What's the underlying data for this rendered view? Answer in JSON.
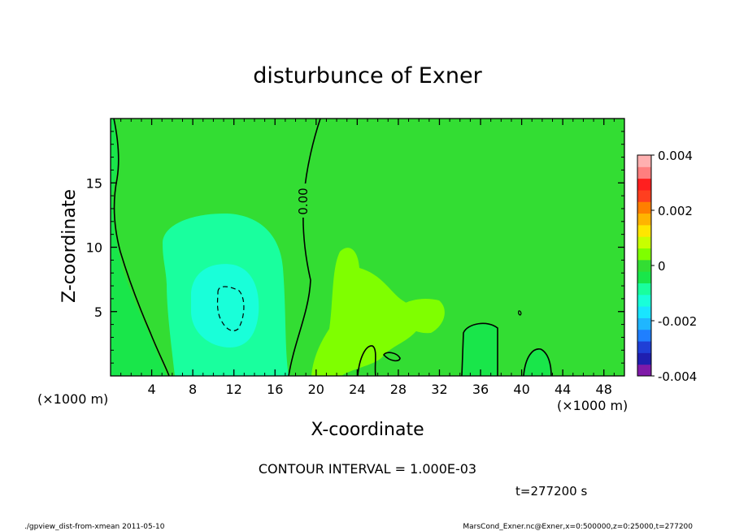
{
  "chart_data": {
    "type": "contour",
    "title": "disturbunce of Exner",
    "xlabel": "X-coordinate",
    "ylabel": "Z-coordinate",
    "x_unit_left": "(×1000 m)",
    "x_unit_right": "(×1000 m)",
    "xlim": [
      0,
      50
    ],
    "ylim": [
      0,
      20
    ],
    "x_ticks": [
      4,
      8,
      12,
      16,
      20,
      24,
      28,
      32,
      36,
      40,
      44,
      48
    ],
    "y_ticks": [
      5,
      10,
      15
    ],
    "contour_label": "0.00",
    "contour_interval_text": "CONTOUR INTERVAL = 1.000E-03",
    "time_text": "t=277200 s",
    "colorbar": {
      "ticks": [
        "0.004",
        "0.002",
        "0",
        "-0.002",
        "-0.004"
      ],
      "range": [
        -0.004,
        0.004
      ],
      "colors": [
        "#7f1aa8",
        "#1f1fb0",
        "#1f3fd6",
        "#1f7fff",
        "#1fb6ff",
        "#19e5ff",
        "#19ffd9",
        "#19ff9e",
        "#19e64a",
        "#33dd33",
        "#7fff00",
        "#c8ff00",
        "#ffe600",
        "#ffb400",
        "#ff7f00",
        "#ff3f1f",
        "#ff1f1f",
        "#ff7f7f",
        "#ffb0b0"
      ]
    }
  },
  "footer": {
    "left": "./gpview_dist-from-xmean  2011-05-10",
    "right": "MarsCond_Exner.nc@Exner,x=0:500000,z=0:25000,t=277200"
  }
}
